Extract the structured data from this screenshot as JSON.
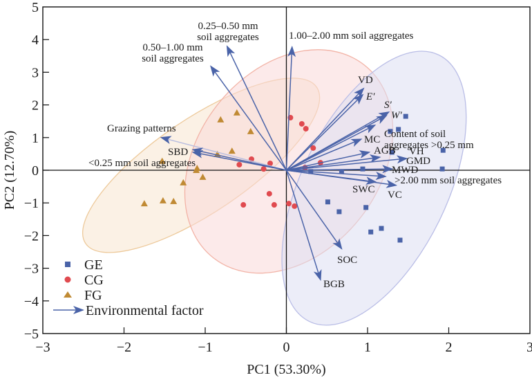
{
  "chart_data": {
    "type": "scatter",
    "subtype": "pca-biplot",
    "title": "",
    "xlabel": "PC1 (53.30%)",
    "ylabel": "PC2 (12.70%)",
    "xlim": [
      -3,
      3
    ],
    "ylim": [
      -5,
      5
    ],
    "xticks": [
      -3,
      -2,
      -1,
      0,
      1,
      2,
      3
    ],
    "yticks": [
      -5,
      -4,
      -3,
      -2,
      -1,
      0,
      1,
      2,
      3,
      4,
      5
    ],
    "xtick_labels": [
      "−3",
      "−2",
      "−1",
      "0",
      "1",
      "2",
      "3"
    ],
    "ytick_labels": [
      "−5",
      "−4",
      "−3",
      "−2",
      "−1",
      "0",
      "1",
      "2",
      "3",
      "4",
      "5"
    ],
    "grid": false,
    "zero_lines": true,
    "legend": {
      "placement": "bottom-left",
      "entries": [
        {
          "label": "GE",
          "marker": "square",
          "color": "#4a63a8"
        },
        {
          "label": "CG",
          "marker": "circle",
          "color": "#e04a4f"
        },
        {
          "label": "FG",
          "marker": "triangle",
          "color": "#c08a34"
        },
        {
          "label": "Environmental factor",
          "marker": "arrow",
          "color": "#4a63a8"
        }
      ]
    },
    "series": [
      {
        "name": "GE",
        "marker": "square",
        "color": "#4a63a8",
        "ellipse": {
          "cx": 1.08,
          "cy": -0.55,
          "rx": 2.6,
          "ry": 1.28,
          "angle_deg": 64,
          "fill": "#dcdff2",
          "stroke": "#b9bde6"
        },
        "points": [
          [
            1.47,
            1.65
          ],
          [
            1.38,
            1.25
          ],
          [
            1.28,
            1.19
          ],
          [
            1.93,
            0.61
          ],
          [
            1.3,
            0.55
          ],
          [
            1.92,
            0.04
          ],
          [
            0.94,
            0.04
          ],
          [
            0.68,
            -0.04
          ],
          [
            0.3,
            -0.04
          ],
          [
            0.51,
            -0.97
          ],
          [
            0.65,
            -1.27
          ],
          [
            0.98,
            -1.14
          ],
          [
            1.04,
            -1.89
          ],
          [
            1.17,
            -1.78
          ],
          [
            1.4,
            -2.14
          ]
        ]
      },
      {
        "name": "CG",
        "marker": "circle",
        "color": "#e04a4f",
        "ellipse": {
          "cx": 0.03,
          "cy": 0.27,
          "rx": 2.15,
          "ry": 1.6,
          "angle_deg": 52,
          "fill": "#f9d9d8",
          "stroke": "#f2b3a6"
        },
        "points": [
          [
            0.05,
            1.61
          ],
          [
            0.19,
            1.42
          ],
          [
            0.24,
            1.27
          ],
          [
            0.33,
            0.68
          ],
          [
            0.42,
            0.23
          ],
          [
            0.23,
            0.08
          ],
          [
            -0.58,
            0.17
          ],
          [
            -0.43,
            0.34
          ],
          [
            -0.2,
            0.21
          ],
          [
            -0.28,
            0.04
          ],
          [
            -0.21,
            -0.72
          ],
          [
            -0.53,
            -1.06
          ],
          [
            -0.15,
            -1.06
          ],
          [
            0.03,
            -1.02
          ],
          [
            0.1,
            -1.1
          ]
        ]
      },
      {
        "name": "FG",
        "marker": "triangle",
        "color": "#c08a34",
        "ellipse": {
          "cx": -1.05,
          "cy": 0.15,
          "rx": 2.45,
          "ry": 0.82,
          "angle_deg": 34,
          "fill": "#f7e6cf",
          "stroke": "#edc99a"
        },
        "points": [
          [
            -0.61,
            1.76
          ],
          [
            -0.81,
            1.55
          ],
          [
            -0.44,
            1.19
          ],
          [
            -0.67,
            0.59
          ],
          [
            -0.85,
            0.49
          ],
          [
            -1.53,
            0.28
          ],
          [
            -1.11,
            0.0
          ],
          [
            -1.1,
            0.06
          ],
          [
            -1.03,
            -0.21
          ],
          [
            -1.27,
            -0.38
          ],
          [
            -1.75,
            -1.02
          ],
          [
            -1.52,
            -0.93
          ],
          [
            -1.39,
            -0.95
          ]
        ]
      }
    ],
    "vectors": [
      {
        "label": "1.00–2.00 mm soil aggregates",
        "x": 0.07,
        "y": 3.77,
        "italic": false
      },
      {
        "label": "0.25–0.50 mm\nsoil aggregates",
        "x": -0.73,
        "y": 3.79,
        "italic": false
      },
      {
        "label": "0.50–1.00 mm\nsoil aggregates",
        "x": -0.93,
        "y": 3.18,
        "italic": false
      },
      {
        "label": "VD",
        "x": 0.95,
        "y": 2.5,
        "italic": false
      },
      {
        "label": "E′",
        "x": 0.94,
        "y": 2.31,
        "italic": true
      },
      {
        "label": "S′",
        "x": 1.26,
        "y": 1.78,
        "italic": true
      },
      {
        "label": "W′",
        "x": 1.23,
        "y": 1.67,
        "italic": true
      },
      {
        "label": "Content of soil\naggregates >0.25 mm",
        "x": 1.09,
        "y": 1.38,
        "italic": false
      },
      {
        "label": "MC",
        "x": 0.92,
        "y": 0.95,
        "italic": false
      },
      {
        "label": "AGB",
        "x": 1.02,
        "y": 0.55,
        "italic": false
      },
      {
        "label": "VH",
        "x": 1.15,
        "y": 0.4,
        "italic": false
      },
      {
        "label": "GMD",
        "x": 1.48,
        "y": 0.36,
        "italic": false
      },
      {
        "label": "MWD",
        "x": 1.3,
        "y": 0.04,
        "italic": false
      },
      {
        "label": ">2.00 mm soil aggregates",
        "x": 1.22,
        "y": -0.19,
        "italic": false
      },
      {
        "label": "SWC",
        "x": 1.1,
        "y": -0.36,
        "italic": false
      },
      {
        "label": "VC",
        "x": 1.35,
        "y": -0.46,
        "italic": false
      },
      {
        "label": "SOC",
        "x": 0.68,
        "y": -2.4,
        "italic": false
      },
      {
        "label": "BGB",
        "x": 0.42,
        "y": -3.35,
        "italic": false
      },
      {
        "label": "Grazing patterns",
        "x": -1.54,
        "y": 1.0,
        "italic": false
      },
      {
        "label": "SBD",
        "x": -1.15,
        "y": 0.63,
        "italic": false
      },
      {
        "label": "<0.25 mm soil aggregates",
        "x": -1.15,
        "y": 0.55,
        "italic": false
      }
    ],
    "vector_color": "#4a63a8"
  }
}
